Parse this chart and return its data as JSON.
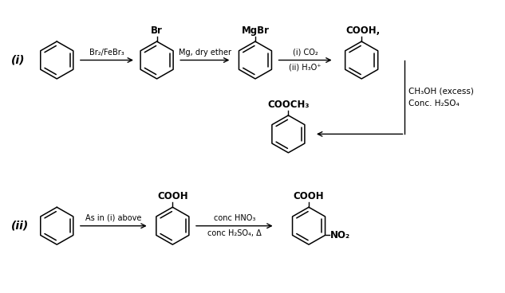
{
  "bg_color": "#ffffff",
  "text_color": "#000000",
  "fig_width": 6.33,
  "fig_height": 3.68,
  "dpi": 100,
  "reaction_i_label": "(i)",
  "reaction_ii_label": "(ii)",
  "arrow1_label_top": "Br₂/FeBr₃",
  "arrow2_label_top": "Mg, dry ether",
  "arrow3_label_1": "(i) CO₂",
  "arrow3_label_2": "(ii) H₃O⁺",
  "arrow4_label_1": "CH₃OH (excess)",
  "arrow4_label_2": "Conc. H₂SO₄",
  "sub1_i": "Br",
  "sub2_i": "MgBr",
  "sub3_i": "COOH,",
  "sub4_i": "COOCH₃",
  "arrow_ii_1_label": "As in (i) above",
  "arrow_ii_2_label_1": "conc HNO₃",
  "arrow_ii_2_label_2": "conc H₂SO₄, Δ",
  "sub_ii_1": "COOH",
  "sub_ii_2": "COOH",
  "sub_ii_3": "NO₂"
}
